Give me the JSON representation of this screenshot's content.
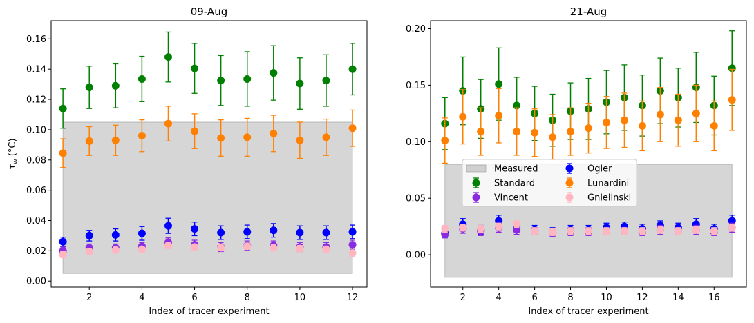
{
  "figure": {
    "ylabel": "τ_w (°C)"
  },
  "chart_data": [
    {
      "type": "scatter",
      "title": "09-Aug",
      "xlabel": "Index of tracer experiment",
      "ylabel": "τ_w (°C)",
      "xlim": [
        0.55,
        12.55
      ],
      "ylim": [
        -0.004,
        0.172
      ],
      "xticks": [
        2,
        4,
        6,
        8,
        10,
        12
      ],
      "yticks": [
        0.0,
        0.02,
        0.04,
        0.06,
        0.08,
        0.1,
        0.12,
        0.14,
        0.16
      ],
      "ytick_labels": [
        "0.00",
        "0.02",
        "0.04",
        "0.06",
        "0.08",
        "0.10",
        "0.12",
        "0.14",
        "0.16"
      ],
      "grid": false,
      "measured_band": {
        "name": "Measured",
        "x": [
          1,
          12
        ],
        "y": [
          0.005,
          0.105
        ]
      },
      "x": [
        1,
        2,
        3,
        4,
        5,
        6,
        7,
        8,
        9,
        10,
        11,
        12
      ],
      "series": [
        {
          "name": "Standard",
          "color": "#008000",
          "values": [
            0.114,
            0.128,
            0.129,
            0.1335,
            0.148,
            0.1405,
            0.1325,
            0.1335,
            0.1375,
            0.1305,
            0.1325,
            0.14
          ],
          "err": [
            0.013,
            0.014,
            0.0145,
            0.015,
            0.0165,
            0.0165,
            0.0165,
            0.018,
            0.018,
            0.017,
            0.017,
            0.017
          ]
        },
        {
          "name": "Lunardini",
          "color": "#ff8000",
          "values": [
            0.0845,
            0.0925,
            0.093,
            0.096,
            0.104,
            0.099,
            0.0945,
            0.095,
            0.0975,
            0.093,
            0.095,
            0.101
          ],
          "err": [
            0.0095,
            0.0095,
            0.01,
            0.0105,
            0.0115,
            0.0115,
            0.012,
            0.0125,
            0.012,
            0.012,
            0.012,
            0.012
          ]
        },
        {
          "name": "Ogier",
          "color": "#0000ff",
          "values": [
            0.026,
            0.03,
            0.0305,
            0.0315,
            0.0365,
            0.0345,
            0.032,
            0.0325,
            0.0335,
            0.032,
            0.032,
            0.0325
          ],
          "err": [
            0.003,
            0.0035,
            0.004,
            0.0045,
            0.005,
            0.0045,
            0.0045,
            0.0045,
            0.0045,
            0.0045,
            0.0045,
            0.0045
          ]
        },
        {
          "name": "Vincent",
          "color": "#8a2be2",
          "values": [
            0.02,
            0.022,
            0.022,
            0.023,
            0.0255,
            0.024,
            0.0225,
            0.0235,
            0.0235,
            0.0225,
            0.0225,
            0.024
          ],
          "err": [
            0.0025,
            0.0025,
            0.0025,
            0.0025,
            0.003,
            0.003,
            0.003,
            0.003,
            0.003,
            0.003,
            0.003,
            0.003
          ]
        },
        {
          "name": "Gnielinski",
          "color": "#ffb6c1",
          "values": [
            0.0175,
            0.0195,
            0.0205,
            0.021,
            0.0235,
            0.0225,
            0.022,
            0.023,
            0.022,
            0.0215,
            0.021,
            0.0185
          ],
          "err": [
            0.002,
            0.002,
            0.002,
            0.002,
            0.002,
            0.002,
            0.002,
            0.002,
            0.002,
            0.002,
            0.002,
            0.002
          ]
        }
      ]
    },
    {
      "type": "scatter",
      "title": "21-Aug",
      "xlabel": "Index of tracer experiment",
      "ylabel": "",
      "xlim": [
        0.2,
        17.8
      ],
      "ylim": [
        -0.0286,
        0.207
      ],
      "xticks": [
        2,
        4,
        6,
        8,
        10,
        12,
        14,
        16
      ],
      "yticks": [
        0.0,
        0.05,
        0.1,
        0.15,
        0.2
      ],
      "ytick_labels": [
        "0.00",
        "0.05",
        "0.10",
        "0.15",
        "0.20"
      ],
      "grid": false,
      "legend_position": "center",
      "legend_order": [
        "Measured",
        "Standard",
        "Vincent",
        "Ogier",
        "Lunardini",
        "Gnielinski"
      ],
      "measured_band": {
        "name": "Measured",
        "x": [
          1,
          17
        ],
        "y": [
          -0.02,
          0.08
        ]
      },
      "x": [
        1,
        2,
        3,
        4,
        5,
        6,
        7,
        8,
        9,
        10,
        11,
        12,
        13,
        14,
        15,
        16,
        17
      ],
      "series": [
        {
          "name": "Standard",
          "color": "#008000",
          "values": [
            0.116,
            0.145,
            0.129,
            0.151,
            0.132,
            0.125,
            0.119,
            0.127,
            0.129,
            0.135,
            0.139,
            0.132,
            0.145,
            0.139,
            0.148,
            0.132,
            0.165
          ],
          "err": [
            0.023,
            0.03,
            0.026,
            0.032,
            0.025,
            0.024,
            0.023,
            0.025,
            0.027,
            0.028,
            0.029,
            0.027,
            0.029,
            0.026,
            0.031,
            0.026,
            0.033
          ]
        },
        {
          "name": "Lunardini",
          "color": "#ff8000",
          "values": [
            0.101,
            0.122,
            0.109,
            0.123,
            0.109,
            0.108,
            0.104,
            0.109,
            0.112,
            0.117,
            0.119,
            0.114,
            0.124,
            0.119,
            0.125,
            0.114,
            0.137
          ],
          "err": [
            0.02,
            0.024,
            0.021,
            0.024,
            0.021,
            0.021,
            0.02,
            0.021,
            0.022,
            0.023,
            0.024,
            0.022,
            0.024,
            0.023,
            0.025,
            0.022,
            0.027
          ]
        },
        {
          "name": "Ogier",
          "color": "#0000ff",
          "values": [
            0.019,
            0.027,
            0.022,
            0.03,
            0.024,
            0.022,
            0.02,
            0.022,
            0.022,
            0.024,
            0.025,
            0.023,
            0.026,
            0.024,
            0.027,
            0.023,
            0.03
          ],
          "err": [
            0.004,
            0.005,
            0.004,
            0.005,
            0.004,
            0.004,
            0.004,
            0.004,
            0.004,
            0.004,
            0.004,
            0.004,
            0.004,
            0.004,
            0.005,
            0.004,
            0.005
          ]
        },
        {
          "name": "Vincent",
          "color": "#8a2be2",
          "values": [
            0.018,
            0.023,
            0.021,
            0.024,
            0.022,
            0.021,
            0.019,
            0.02,
            0.02,
            0.021,
            0.021,
            0.02,
            0.022,
            0.021,
            0.022,
            0.02,
            0.024
          ],
          "err": [
            0.003,
            0.004,
            0.004,
            0.004,
            0.004,
            0.003,
            0.003,
            0.003,
            0.003,
            0.003,
            0.003,
            0.003,
            0.004,
            0.003,
            0.004,
            0.003,
            0.004
          ]
        },
        {
          "name": "Gnielinski",
          "color": "#ffb6c1",
          "values": [
            0.023,
            0.024,
            0.023,
            0.025,
            0.027,
            0.021,
            0.02,
            0.021,
            0.021,
            0.021,
            0.021,
            0.021,
            0.022,
            0.021,
            0.022,
            0.021,
            0.024
          ],
          "err": [
            0.003,
            0.003,
            0.003,
            0.003,
            0.003,
            0.003,
            0.003,
            0.003,
            0.003,
            0.003,
            0.003,
            0.003,
            0.003,
            0.003,
            0.003,
            0.003,
            0.003
          ]
        }
      ]
    }
  ]
}
